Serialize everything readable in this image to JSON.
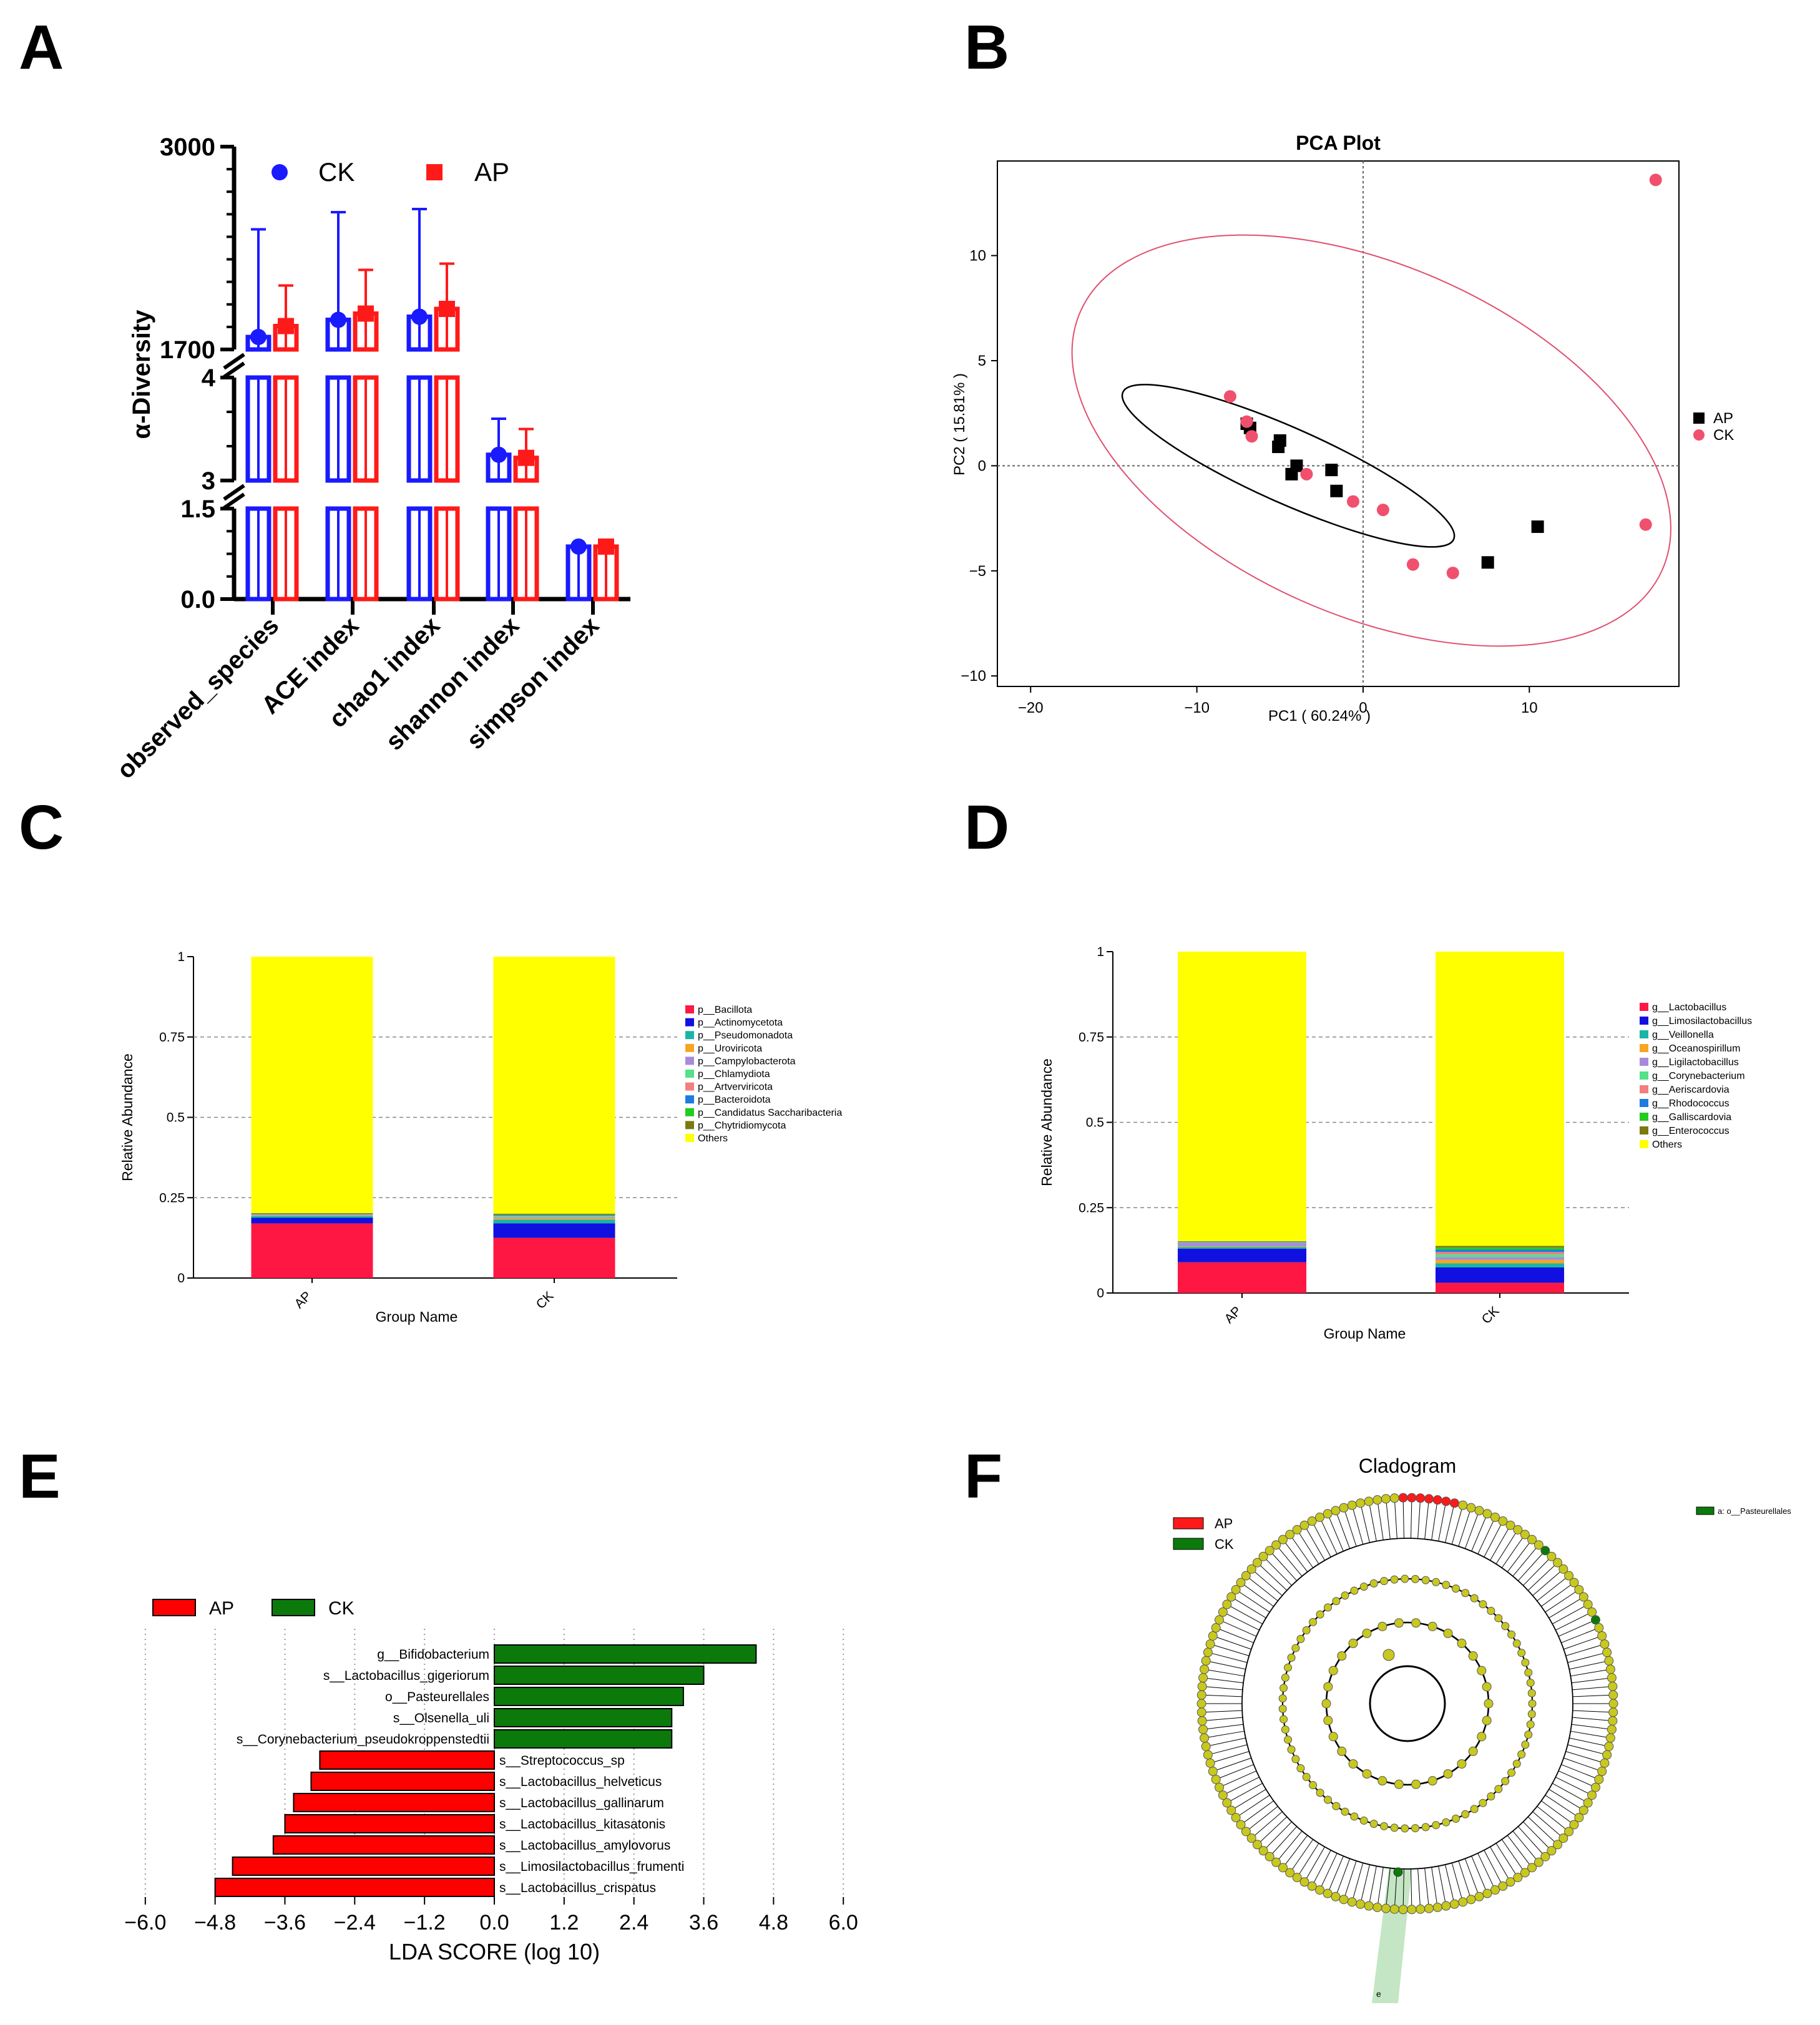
{
  "panels": {
    "A": "A",
    "B": "B",
    "C": "C",
    "D": "D",
    "E": "E",
    "F": "F"
  },
  "colors": {
    "ck_blue": "#1a1aff",
    "ap_red": "#ff1a1a",
    "pca_ap": "#000000",
    "pca_ck": "#f0506e",
    "lefse_ap": "#ff0000",
    "lefse_ck": "#0b7a0b",
    "tree_node": "#c8c81e"
  },
  "chart_data": [
    {
      "id": "A",
      "type": "bar",
      "title": "",
      "ylabel": "α-Diversity",
      "categories": [
        "observed_species",
        "ACE index",
        "chao1 index",
        "shannon index",
        "simpson index"
      ],
      "legend": [
        "CK",
        "AP"
      ],
      "segments": [
        {
          "range": [
            1700,
            3000
          ],
          "ticks": [
            "3000",
            "1700"
          ]
        },
        {
          "range": [
            3,
            4
          ],
          "ticks": [
            "4",
            "3"
          ]
        },
        {
          "range": [
            0,
            1.5
          ],
          "ticks": [
            "1.5",
            "0.0"
          ]
        }
      ],
      "series": [
        {
          "name": "CK",
          "values": [
            1780,
            1890,
            1910,
            3.25,
            0.87
          ],
          "err": [
            2470,
            2580,
            2600,
            3.6,
            0.88
          ]
        },
        {
          "name": "AP",
          "values": [
            1850,
            1930,
            1960,
            3.22,
            0.87
          ],
          "err": [
            2110,
            2210,
            2250,
            3.5,
            0.88
          ]
        }
      ]
    },
    {
      "id": "B",
      "type": "scatter",
      "title": "PCA Plot",
      "xlabel": "PC1 ( 60.24% )",
      "ylabel": "PC2 ( 15.81% )",
      "xlim": [
        -22,
        19
      ],
      "ylim": [
        -10.5,
        14.5
      ],
      "xticks": [
        {
          "v": -20,
          "l": "−20"
        },
        {
          "v": -10,
          "l": "−10"
        },
        {
          "v": 0,
          "l": "0"
        },
        {
          "v": 10,
          "l": "10"
        }
      ],
      "yticks": [
        {
          "v": 10,
          "l": "10"
        },
        {
          "v": 5,
          "l": "5"
        },
        {
          "v": 0,
          "l": "0"
        },
        {
          "v": -5,
          "l": "−5"
        },
        {
          "v": -10,
          "l": "−10"
        }
      ],
      "legend": [
        "AP",
        "CK"
      ],
      "series": [
        {
          "name": "AP",
          "points": [
            [
              -7,
              2.0
            ],
            [
              -6.8,
              1.8
            ],
            [
              -5,
              1.2
            ],
            [
              -5.1,
              0.9
            ],
            [
              -4,
              0.0
            ],
            [
              -4.3,
              -0.4
            ],
            [
              -1.9,
              -0.2
            ],
            [
              -1.6,
              -1.2
            ],
            [
              7.5,
              -4.6
            ],
            [
              10.5,
              -2.9
            ]
          ]
        },
        {
          "name": "CK",
          "points": [
            [
              -8,
              3.3
            ],
            [
              -7,
              2.1
            ],
            [
              -6.7,
              1.4
            ],
            [
              -3.4,
              -0.4
            ],
            [
              -0.6,
              -1.7
            ],
            [
              1.2,
              -2.1
            ],
            [
              3,
              -4.7
            ],
            [
              5.4,
              -5.1
            ],
            [
              17,
              -2.8
            ],
            [
              17.6,
              13.6
            ]
          ]
        }
      ]
    },
    {
      "id": "C",
      "type": "bar",
      "stacked": true,
      "xlabel": "Group Name",
      "ylabel": "Relative Abundance",
      "categories": [
        "AP",
        "CK"
      ],
      "ylim": [
        0,
        1
      ],
      "yticks": [
        "0",
        "0.25",
        "0.5",
        "0.75",
        "1"
      ],
      "series": [
        {
          "name": "p__Bacillota",
          "color": "#ff1744",
          "values": [
            0.17,
            0.125
          ]
        },
        {
          "name": "p__Actinomycetota",
          "color": "#1010e0",
          "values": [
            0.018,
            0.045
          ]
        },
        {
          "name": "p__Pseudomonadota",
          "color": "#19b5a5",
          "values": [
            0.005,
            0.012
          ]
        },
        {
          "name": "p__Uroviricota",
          "color": "#f5a623",
          "values": [
            0.002,
            0.004
          ]
        },
        {
          "name": "p__Campylobacterota",
          "color": "#a78bdb",
          "values": [
            0.002,
            0.003
          ]
        },
        {
          "name": "p__Chlamydiota",
          "color": "#55e08a",
          "values": [
            0.001,
            0.003
          ]
        },
        {
          "name": "p__Artverviricota",
          "color": "#f08080",
          "values": [
            0.001,
            0.002
          ]
        },
        {
          "name": "p__Bacteroidota",
          "color": "#1e7be0",
          "values": [
            0.001,
            0.002
          ]
        },
        {
          "name": "p__Candidatus Saccharibacteria",
          "color": "#22cc22",
          "values": [
            0.001,
            0.002
          ]
        },
        {
          "name": "p__Chytridiomycota",
          "color": "#7a7a10",
          "values": [
            0.001,
            0.002
          ]
        },
        {
          "name": "Others",
          "color": "#ffff00",
          "values": [
            0.798,
            0.8
          ]
        }
      ]
    },
    {
      "id": "D",
      "type": "bar",
      "stacked": true,
      "xlabel": "Group Name",
      "ylabel": "Relative Abundance",
      "categories": [
        "AP",
        "CK"
      ],
      "ylim": [
        0,
        1
      ],
      "yticks": [
        "0",
        "0.25",
        "0.5",
        "0.75",
        "1"
      ],
      "series": [
        {
          "name": "g__Lactobacillus",
          "color": "#ff1744",
          "values": [
            0.09,
            0.03
          ]
        },
        {
          "name": "g__Limosilactobacillus",
          "color": "#1010e0",
          "values": [
            0.04,
            0.045
          ]
        },
        {
          "name": "g__Veillonella",
          "color": "#19b5a5",
          "values": [
            0.005,
            0.012
          ]
        },
        {
          "name": "g__Oceanospirillum",
          "color": "#f5a623",
          "values": [
            0.002,
            0.01
          ]
        },
        {
          "name": "g__Ligilactobacillus",
          "color": "#a78bdb",
          "values": [
            0.01,
            0.008
          ]
        },
        {
          "name": "g__Corynebacterium",
          "color": "#55e08a",
          "values": [
            0.001,
            0.008
          ]
        },
        {
          "name": "g__Aeriscardovia",
          "color": "#f08080",
          "values": [
            0.001,
            0.007
          ]
        },
        {
          "name": "g__Rhodococcus",
          "color": "#1e7be0",
          "values": [
            0.001,
            0.007
          ]
        },
        {
          "name": "g__Galliscardovia",
          "color": "#22cc22",
          "values": [
            0.001,
            0.006
          ]
        },
        {
          "name": "g__Enterococcus",
          "color": "#7a7a10",
          "values": [
            0.001,
            0.005
          ]
        },
        {
          "name": "Others",
          "color": "#ffff00",
          "values": [
            0.848,
            0.862
          ]
        }
      ]
    },
    {
      "id": "E",
      "type": "bar",
      "orientation": "horizontal",
      "xlabel": "LDA SCORE (log 10)",
      "xlim": [
        -6,
        6
      ],
      "xticks": [
        "−6.0",
        "−4.8",
        "−3.6",
        "−2.4",
        "−1.2",
        "0.0",
        "1.2",
        "2.4",
        "3.6",
        "4.8",
        "6.0"
      ],
      "legend": [
        "AP",
        "CK"
      ],
      "bars": [
        {
          "label": "g__Bifidobacterium",
          "value": 4.5,
          "group": "CK"
        },
        {
          "label": "s__Lactobacillus_gigeriorum",
          "value": 3.6,
          "group": "CK"
        },
        {
          "label": "o__Pasteurellales",
          "value": 3.25,
          "group": "CK"
        },
        {
          "label": "s__Olsenella_uli",
          "value": 3.05,
          "group": "CK"
        },
        {
          "label": "s__Corynebacterium_pseudokroppenstedtii",
          "value": 3.05,
          "group": "CK"
        },
        {
          "label": "s__Streptococcus_sp",
          "value": -3.0,
          "group": "AP"
        },
        {
          "label": "s__Lactobacillus_helveticus",
          "value": -3.15,
          "group": "AP"
        },
        {
          "label": "s__Lactobacillus_gallinarum",
          "value": -3.45,
          "group": "AP"
        },
        {
          "label": "s__Lactobacillus_kitasatonis",
          "value": -3.6,
          "group": "AP"
        },
        {
          "label": "s__Lactobacillus_amylovorus",
          "value": -3.8,
          "group": "AP"
        },
        {
          "label": "s__Limosilactobacillus_frumenti",
          "value": -4.5,
          "group": "AP"
        },
        {
          "label": "s__Lactobacillus_crispatus",
          "value": -4.8,
          "group": "AP"
        }
      ]
    },
    {
      "id": "F",
      "type": "other",
      "title": "Cladogram",
      "legend": [
        "AP",
        "CK"
      ],
      "annotation_legend": "a: o__Pasteurellales",
      "node_label": "e"
    }
  ]
}
